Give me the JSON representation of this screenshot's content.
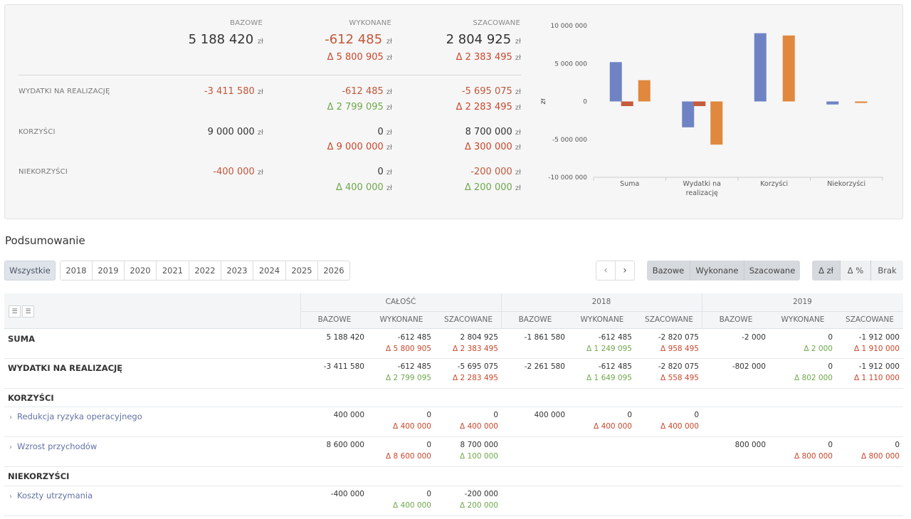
{
  "summary": {
    "headers": [
      "BAZOWE",
      "WYKONANE",
      "SZACOWANE"
    ],
    "currency": "zł",
    "totals": {
      "values": [
        "5 188 420",
        "-612 485",
        "2 804 925"
      ],
      "deltas": [
        "",
        "Δ 5 800 905",
        "Δ 2 383 495"
      ]
    },
    "rows": [
      {
        "label": "WYDATKI NA REALIZACJĘ",
        "values": [
          "-3 411 580",
          "-612 485",
          "-5 695 075"
        ],
        "deltas": [
          "",
          "Δ 2 799 095",
          "Δ 2 283 495"
        ]
      },
      {
        "label": "KORZYŚCI",
        "values": [
          "9 000 000",
          "0",
          "8 700 000"
        ],
        "deltas": [
          "",
          "Δ 9 000 000",
          "Δ 300 000"
        ]
      },
      {
        "label": "NIEKORZYŚCI",
        "values": [
          "-400 000",
          "0",
          "-200 000"
        ],
        "deltas": [
          "",
          "Δ 400 000",
          "Δ 200 000"
        ]
      }
    ]
  },
  "chart_data": {
    "type": "bar",
    "categories": [
      "Suma",
      "Wydatki na realizację",
      "Korzyści",
      "Niekorzyści"
    ],
    "series": [
      {
        "values": [
          5188420,
          -3411580,
          9000000,
          -400000
        ],
        "color": "#6f83c4"
      },
      {
        "values": [
          -612485,
          -612485,
          0,
          0
        ],
        "color": "#c65a3c"
      },
      {
        "values": [
          2804925,
          -5695075,
          8700000,
          -200000
        ],
        "color": "#e0883e"
      }
    ],
    "ylabel": "zł",
    "ylim": [
      -10000000,
      10000000
    ],
    "yticks": [
      "10 000 000",
      "5 000 000",
      "0",
      "-5 000 000",
      "-10 000 000"
    ],
    "xtick_lines": [
      [
        "Suma"
      ],
      [
        "Wydatki na",
        "realizację"
      ],
      [
        "Korzyści"
      ],
      [
        "Niekorzyści"
      ]
    ],
    "grid": false
  },
  "section_title": "Podsumowanie",
  "filters": {
    "all_label": "Wszystkie",
    "years": [
      "2018",
      "2019",
      "2020",
      "2021",
      "2022",
      "2023",
      "2024",
      "2025",
      "2026"
    ],
    "nav_prev": "‹",
    "nav_next": "›",
    "scenarios": [
      "Bazowe",
      "Wykonane",
      "Szacowane"
    ],
    "delta_modes": [
      "Δ zł",
      "Δ %",
      "Brak"
    ]
  },
  "table": {
    "groups": [
      "CAŁOŚĆ",
      "2018",
      "2019"
    ],
    "subheaders": [
      "BAZOWE",
      "WYKONANE",
      "SZACOWANE"
    ],
    "rows": [
      {
        "label": "SUMA",
        "type": "total",
        "values": [
          "5 188 420",
          "-612 485",
          "2 804 925",
          "-1 861 580",
          "-612 485",
          "-2 820 075",
          "-2 000",
          "0",
          "-1 912 000"
        ],
        "deltas": [
          "",
          "Δ 5 800 905",
          "Δ 2 383 495",
          "",
          "Δ 1 249 095",
          "Δ 958 495",
          "",
          "Δ 2 000",
          "Δ 1 910 000"
        ],
        "delta_colors": [
          "",
          "neg",
          "neg",
          "",
          "pos",
          "neg",
          "",
          "pos",
          "neg"
        ]
      },
      {
        "label": "WYDATKI NA REALIZACJĘ",
        "type": "total",
        "values": [
          "-3 411 580",
          "-612 485",
          "-5 695 075",
          "-2 261 580",
          "-612 485",
          "-2 820 075",
          "-802 000",
          "0",
          "-1 912 000"
        ],
        "deltas": [
          "",
          "Δ 2 799 095",
          "Δ 2 283 495",
          "",
          "Δ 1 649 095",
          "Δ 558 495",
          "",
          "Δ 802 000",
          "Δ 1 110 000"
        ],
        "delta_colors": [
          "",
          "pos",
          "neg",
          "",
          "pos",
          "neg",
          "",
          "pos",
          "neg"
        ]
      },
      {
        "label": "KORZYŚCI",
        "type": "header"
      },
      {
        "label": "Redukcja ryzyka operacyjnego",
        "type": "item",
        "values": [
          "400 000",
          "0",
          "0",
          "400 000",
          "0",
          "0",
          "",
          "",
          ""
        ],
        "deltas": [
          "",
          "Δ 400 000",
          "Δ 400 000",
          "",
          "Δ 400 000",
          "Δ 400 000",
          "",
          "",
          ""
        ],
        "delta_colors": [
          "",
          "neg",
          "neg",
          "",
          "neg",
          "neg",
          "",
          "",
          ""
        ]
      },
      {
        "label": "Wzrost przychodów",
        "type": "item",
        "values": [
          "8 600 000",
          "0",
          "8 700 000",
          "",
          "",
          "",
          "800 000",
          "0",
          "0"
        ],
        "deltas": [
          "",
          "Δ 8 600 000",
          "Δ 100 000",
          "",
          "",
          "",
          "",
          "Δ 800 000",
          "Δ 800 000"
        ],
        "delta_colors": [
          "",
          "neg",
          "pos",
          "",
          "",
          "",
          "",
          "neg",
          "neg"
        ]
      },
      {
        "label": "NIEKORZYŚCI",
        "type": "header"
      },
      {
        "label": "Koszty utrzymania",
        "type": "item",
        "values": [
          "-400 000",
          "0",
          "-200 000",
          "",
          "",
          "",
          "",
          "",
          ""
        ],
        "deltas": [
          "",
          "Δ 400 000",
          "Δ 200 000",
          "",
          "",
          "",
          "",
          "",
          ""
        ],
        "delta_colors": [
          "",
          "pos",
          "pos",
          "",
          "",
          "",
          "",
          "",
          ""
        ]
      }
    ]
  }
}
